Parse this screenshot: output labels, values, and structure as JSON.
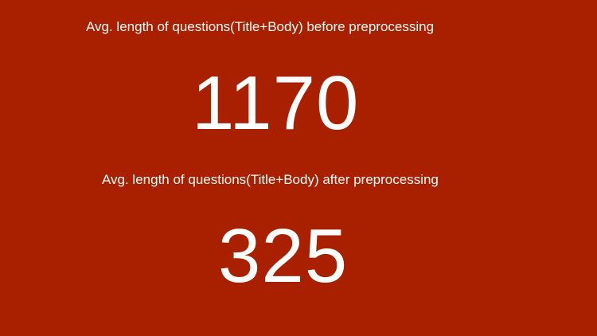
{
  "colors": {
    "background": "#a82000",
    "text": "#ffffff"
  },
  "before": {
    "label": "Avg. length of questions(Title+Body) before preprocessing",
    "value": "1170"
  },
  "after": {
    "label": "Avg. length of questions(Title+Body) after preprocessing",
    "value": "325"
  }
}
